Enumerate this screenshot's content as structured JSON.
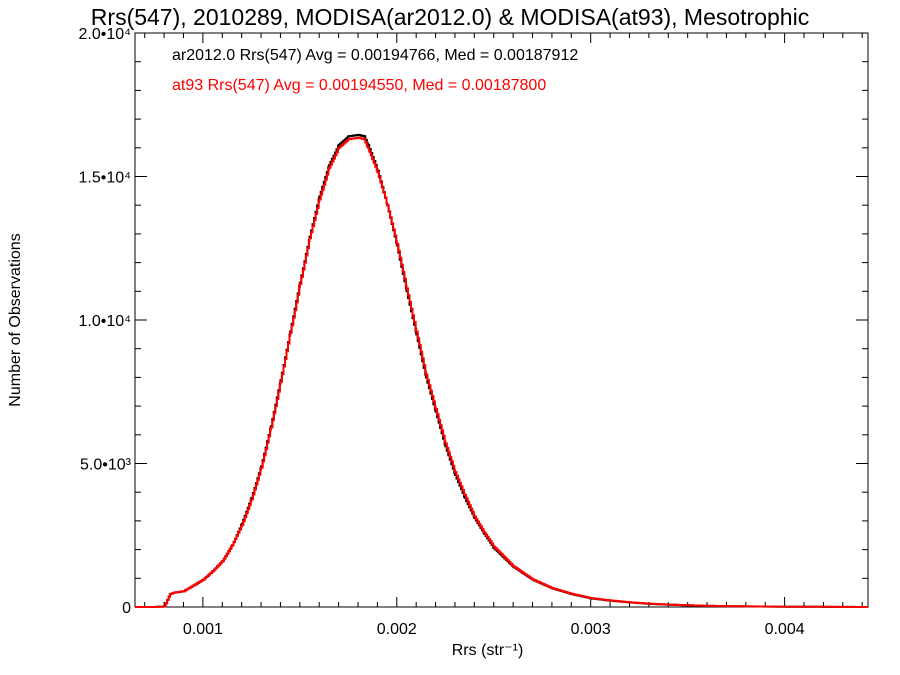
{
  "chart_data": {
    "type": "line",
    "title": "Rrs(547), 2010289, MODISA(ar2012.0) & MODISA(at93), Mesotrophic",
    "xlabel": "Rrs (str⁻¹)",
    "ylabel": "Number of Observations",
    "xlim": [
      0.00065,
      0.00443
    ],
    "ylim": [
      0,
      20000
    ],
    "x_ticks": [
      0.001,
      0.002,
      0.003,
      0.004
    ],
    "x_tick_labels": [
      "0.001",
      "0.002",
      "0.003",
      "0.004"
    ],
    "y_ticks": [
      0,
      5000,
      10000,
      15000,
      20000
    ],
    "y_tick_labels": [
      "0",
      "5.0•10³",
      "1.0•10⁴",
      "1.5•10⁴",
      "2.0•10⁴"
    ],
    "grid": false,
    "annotations": [
      {
        "text": "ar2012.0 Rrs(547) Avg = 0.00194766, Med = 0.00187912",
        "color": "#000000"
      },
      {
        "text": "at93 Rrs(547) Avg = 0.00194550, Med = 0.00187800",
        "color": "#ff0000"
      }
    ],
    "x": [
      0.00065,
      0.00075,
      0.0008,
      0.00083,
      0.00085,
      0.0009,
      0.00095,
      0.001,
      0.00105,
      0.0011,
      0.00115,
      0.0012,
      0.00125,
      0.0013,
      0.00135,
      0.0014,
      0.00145,
      0.0015,
      0.00155,
      0.0016,
      0.00165,
      0.0017,
      0.00175,
      0.0018,
      0.00183,
      0.00185,
      0.0019,
      0.00195,
      0.002,
      0.00205,
      0.0021,
      0.00215,
      0.0022,
      0.00225,
      0.0023,
      0.00235,
      0.0024,
      0.00245,
      0.0025,
      0.0026,
      0.0027,
      0.0028,
      0.0029,
      0.003,
      0.0031,
      0.0032,
      0.0033,
      0.0034,
      0.0035,
      0.0036,
      0.0038,
      0.004,
      0.0042,
      0.00443
    ],
    "series": [
      {
        "name": "ar2012.0",
        "color": "#000000",
        "values": [
          0,
          0,
          20,
          450,
          500,
          550,
          750,
          950,
          1250,
          1600,
          2150,
          2900,
          3800,
          4900,
          6300,
          7900,
          9600,
          11300,
          12900,
          14300,
          15400,
          16100,
          16400,
          16450,
          16400,
          16100,
          15200,
          14000,
          12600,
          11000,
          9500,
          8000,
          6800,
          5600,
          4600,
          3800,
          3100,
          2550,
          2050,
          1400,
          950,
          650,
          450,
          300,
          220,
          160,
          110,
          80,
          60,
          40,
          20,
          10,
          5,
          0
        ]
      },
      {
        "name": "at93",
        "color": "#ff0000",
        "values": [
          0,
          0,
          20,
          450,
          500,
          550,
          750,
          950,
          1250,
          1600,
          2150,
          2850,
          3750,
          4850,
          6250,
          7850,
          9550,
          11250,
          12850,
          14200,
          15300,
          16000,
          16300,
          16350,
          16300,
          16000,
          15150,
          14000,
          12650,
          11100,
          9600,
          8100,
          6900,
          5700,
          4700,
          3900,
          3150,
          2600,
          2100,
          1420,
          960,
          660,
          460,
          310,
          230,
          165,
          115,
          85,
          60,
          40,
          22,
          12,
          6,
          0
        ]
      }
    ]
  }
}
